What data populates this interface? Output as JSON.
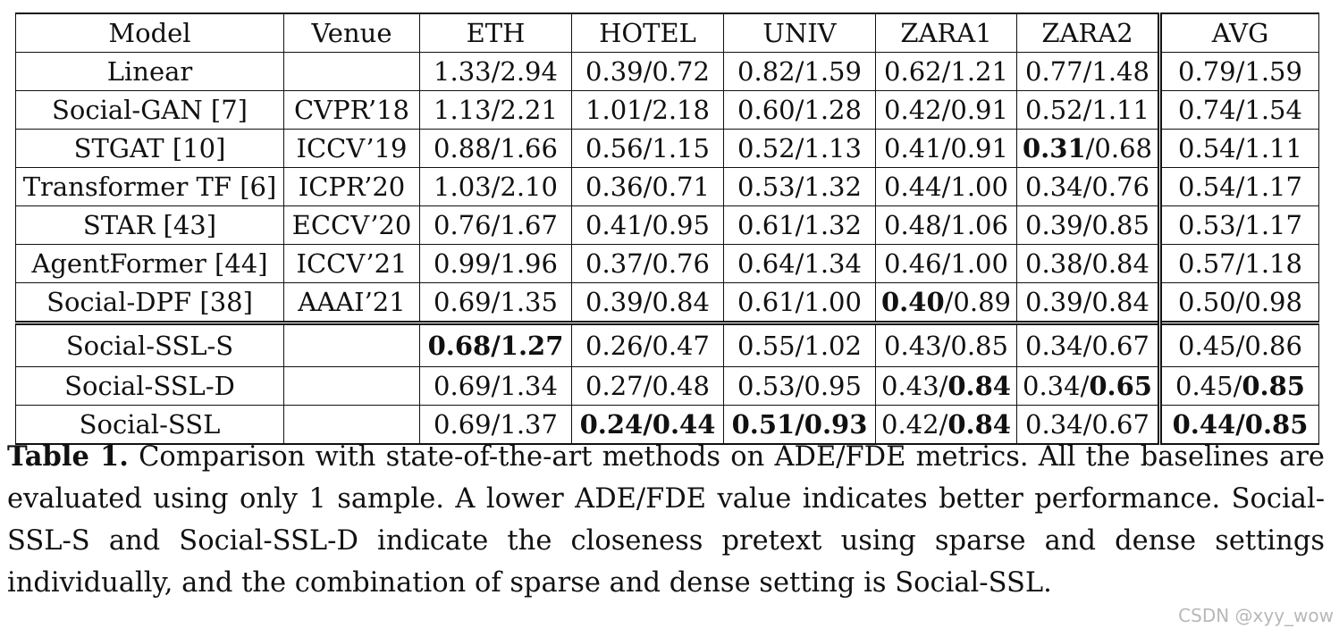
{
  "table": {
    "headers": [
      "Model",
      "Venue",
      "ETH",
      "HOTEL",
      "UNIV",
      "ZARA1",
      "ZARA2",
      "AVG"
    ],
    "rows": [
      {
        "model": "Linear",
        "venue": "",
        "cells": [
          [
            {
              "t": "1.33/2.94",
              "b": false
            }
          ],
          [
            {
              "t": "0.39/0.72",
              "b": false
            }
          ],
          [
            {
              "t": "0.82/1.59",
              "b": false
            }
          ],
          [
            {
              "t": "0.62/1.21",
              "b": false
            }
          ],
          [
            {
              "t": "0.77/1.48",
              "b": false
            }
          ],
          [
            {
              "t": "0.79/1.59",
              "b": false
            }
          ]
        ]
      },
      {
        "model": "Social-GAN [7]",
        "venue": "CVPR’18",
        "cells": [
          [
            {
              "t": "1.13/2.21",
              "b": false
            }
          ],
          [
            {
              "t": "1.01/2.18",
              "b": false
            }
          ],
          [
            {
              "t": "0.60/1.28",
              "b": false
            }
          ],
          [
            {
              "t": "0.42/0.91",
              "b": false
            }
          ],
          [
            {
              "t": "0.52/1.11",
              "b": false
            }
          ],
          [
            {
              "t": "0.74/1.54",
              "b": false
            }
          ]
        ]
      },
      {
        "model": "STGAT [10]",
        "venue": "ICCV’19",
        "cells": [
          [
            {
              "t": "0.88/1.66",
              "b": false
            }
          ],
          [
            {
              "t": "0.56/1.15",
              "b": false
            }
          ],
          [
            {
              "t": "0.52/1.13",
              "b": false
            }
          ],
          [
            {
              "t": "0.41/0.91",
              "b": false
            }
          ],
          [
            {
              "t": "0.31",
              "b": true
            },
            {
              "t": "/0.68",
              "b": false
            }
          ],
          [
            {
              "t": "0.54/1.11",
              "b": false
            }
          ]
        ]
      },
      {
        "model": "Transformer TF [6]",
        "venue": "ICPR’20",
        "cells": [
          [
            {
              "t": "1.03/2.10",
              "b": false
            }
          ],
          [
            {
              "t": "0.36/0.71",
              "b": false
            }
          ],
          [
            {
              "t": "0.53/1.32",
              "b": false
            }
          ],
          [
            {
              "t": "0.44/1.00",
              "b": false
            }
          ],
          [
            {
              "t": "0.34/0.76",
              "b": false
            }
          ],
          [
            {
              "t": "0.54/1.17",
              "b": false
            }
          ]
        ]
      },
      {
        "model": "STAR [43]",
        "venue": "ECCV’20",
        "cells": [
          [
            {
              "t": "0.76/1.67",
              "b": false
            }
          ],
          [
            {
              "t": "0.41/0.95",
              "b": false
            }
          ],
          [
            {
              "t": "0.61/1.32",
              "b": false
            }
          ],
          [
            {
              "t": "0.48/1.06",
              "b": false
            }
          ],
          [
            {
              "t": "0.39/0.85",
              "b": false
            }
          ],
          [
            {
              "t": "0.53/1.17",
              "b": false
            }
          ]
        ]
      },
      {
        "model": "AgentFormer [44]",
        "venue": "ICCV’21",
        "cells": [
          [
            {
              "t": "0.99/1.96",
              "b": false
            }
          ],
          [
            {
              "t": "0.37/0.76",
              "b": false
            }
          ],
          [
            {
              "t": "0.64/1.34",
              "b": false
            }
          ],
          [
            {
              "t": "0.46/1.00",
              "b": false
            }
          ],
          [
            {
              "t": "0.38/0.84",
              "b": false
            }
          ],
          [
            {
              "t": "0.57/1.18",
              "b": false
            }
          ]
        ]
      },
      {
        "model": "Social-DPF [38]",
        "venue": "AAAI’21",
        "cells": [
          [
            {
              "t": "0.69/1.35",
              "b": false
            }
          ],
          [
            {
              "t": "0.39/0.84",
              "b": false
            }
          ],
          [
            {
              "t": "0.61/1.00",
              "b": false
            }
          ],
          [
            {
              "t": "0.40",
              "b": true
            },
            {
              "t": "/0.89",
              "b": false
            }
          ],
          [
            {
              "t": "0.39/0.84",
              "b": false
            }
          ],
          [
            {
              "t": "0.50/0.98",
              "b": false
            }
          ]
        ]
      },
      {
        "model": "Social-SSL-S",
        "venue": "",
        "group_start": true,
        "cells": [
          [
            {
              "t": "0.68/1.27",
              "b": true
            }
          ],
          [
            {
              "t": "0.26/0.47",
              "b": false
            }
          ],
          [
            {
              "t": "0.55/1.02",
              "b": false
            }
          ],
          [
            {
              "t": "0.43/0.85",
              "b": false
            }
          ],
          [
            {
              "t": "0.34/0.67",
              "b": false
            }
          ],
          [
            {
              "t": "0.45/0.86",
              "b": false
            }
          ]
        ]
      },
      {
        "model": "Social-SSL-D",
        "venue": "",
        "cells": [
          [
            {
              "t": "0.69/1.34",
              "b": false
            }
          ],
          [
            {
              "t": "0.27/0.48",
              "b": false
            }
          ],
          [
            {
              "t": "0.53/0.95",
              "b": false
            }
          ],
          [
            {
              "t": "0.43/",
              "b": false
            },
            {
              "t": "0.84",
              "b": true
            }
          ],
          [
            {
              "t": "0.34/",
              "b": false
            },
            {
              "t": "0.65",
              "b": true
            }
          ],
          [
            {
              "t": "0.45/",
              "b": false
            },
            {
              "t": "0.85",
              "b": true
            }
          ]
        ]
      },
      {
        "model": "Social-SSL",
        "venue": "",
        "cells": [
          [
            {
              "t": "0.69/1.37",
              "b": false
            }
          ],
          [
            {
              "t": "0.24/0.44",
              "b": true
            }
          ],
          [
            {
              "t": "0.51/0.93",
              "b": true
            }
          ],
          [
            {
              "t": "0.42/",
              "b": false
            },
            {
              "t": "0.84",
              "b": true
            }
          ],
          [
            {
              "t": "0.34/0.67",
              "b": false
            }
          ],
          [
            {
              "t": "0.44/0.85",
              "b": true
            }
          ]
        ]
      }
    ]
  },
  "caption": {
    "label": "Table 1.",
    "text": "Comparison with state-of-the-art methods on ADE/FDE metrics. All the baselines are evaluated using only 1 sample. A lower ADE/FDE value indicates better performance. Social-SSL-S and Social-SSL-D indicate the closeness pretext using sparse and dense settings individually, and the combination of sparse and dense setting is Social-SSL."
  },
  "watermark": "CSDN @xyy_wow"
}
